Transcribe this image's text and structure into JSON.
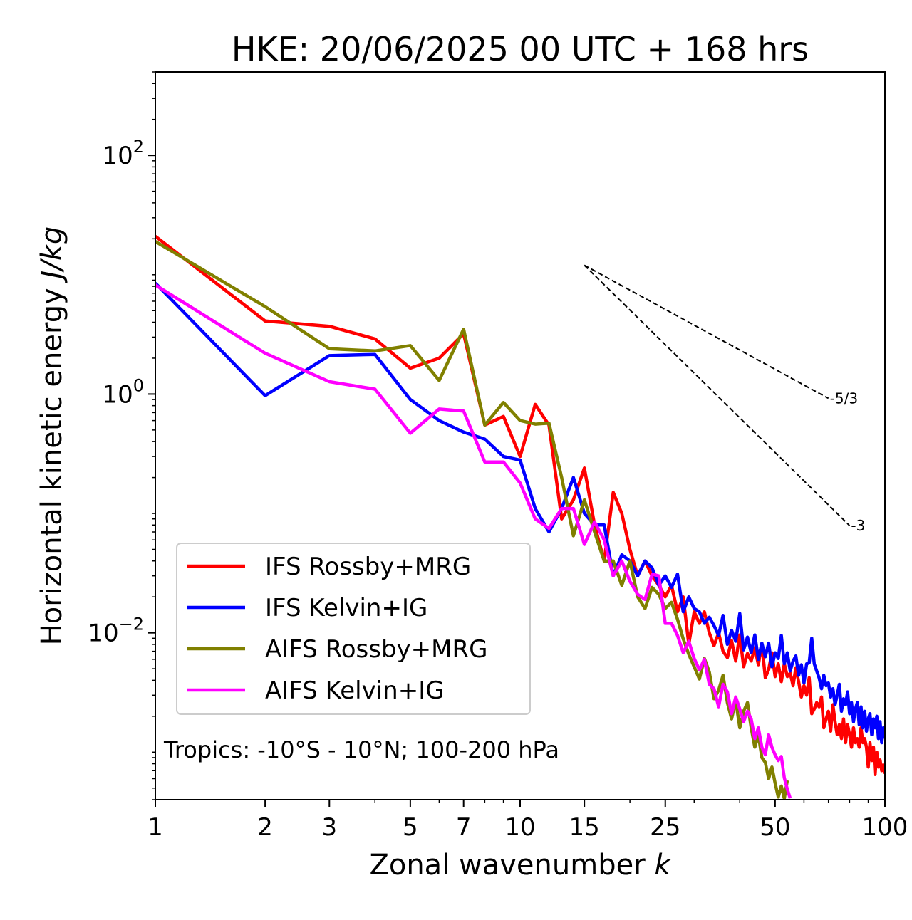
{
  "chart_data": {
    "type": "line",
    "title": "HKE: 20/06/2025 00 UTC + 168 hrs",
    "xlabel": "Zonal wavenumber k",
    "ylabel": "Horizontal kinetic energy J/kg",
    "xscale": "log",
    "yscale": "log",
    "xlim": [
      1,
      100
    ],
    "ylim": [
      0.0004,
      500
    ],
    "x_ticks": [
      {
        "value": 1,
        "label": "1"
      },
      {
        "value": 2,
        "label": "2"
      },
      {
        "value": 3,
        "label": "3"
      },
      {
        "value": 5,
        "label": "5"
      },
      {
        "value": 7,
        "label": "7"
      },
      {
        "value": 10,
        "label": "10"
      },
      {
        "value": 15,
        "label": "15"
      },
      {
        "value": 25,
        "label": "25"
      },
      {
        "value": 50,
        "label": "50"
      },
      {
        "value": 100,
        "label": "100"
      }
    ],
    "y_ticks": [
      {
        "value": 100,
        "base": "10",
        "exp": "2"
      },
      {
        "value": 1,
        "base": "10",
        "exp": "0"
      },
      {
        "value": 0.01,
        "base": "10",
        "exp": "−2"
      }
    ],
    "grid": false,
    "legend_position": "lower-left",
    "annotation": "Tropics: -10°S - 10°N; 100-200 hPa",
    "reference_slopes": [
      {
        "label": "-5/3",
        "slope": -1.6667,
        "x_start": 15,
        "y_start": 12,
        "x_end": 70
      },
      {
        "label": "-3",
        "slope": -3,
        "x_start": 15,
        "y_start": 12,
        "x_end": 80
      }
    ],
    "series": [
      {
        "name": "IFS Rossby+MRG",
        "color": "#ff0000",
        "x": [
          1,
          2,
          3,
          4,
          5,
          6,
          7,
          8,
          9,
          10,
          11,
          12,
          13,
          14,
          15,
          16,
          17,
          18,
          19,
          20,
          21,
          22,
          23,
          24,
          25,
          26,
          27,
          28,
          29,
          30,
          31,
          32,
          33,
          34,
          35,
          36,
          37,
          38,
          39,
          40,
          41,
          42,
          43,
          44,
          45,
          46,
          47,
          48,
          49,
          50,
          51,
          52,
          53,
          54,
          55,
          56,
          57,
          58,
          59,
          60,
          61,
          62,
          63,
          64,
          65,
          66,
          67,
          68,
          69,
          70,
          71,
          72,
          73,
          74,
          75,
          76,
          77,
          78,
          79,
          80,
          81,
          82,
          83,
          84,
          85,
          86,
          87,
          88,
          89,
          90,
          91,
          92,
          93,
          94,
          95,
          96,
          97,
          98,
          99,
          100
        ],
        "y": [
          21,
          4.1,
          3.7,
          2.9,
          1.65,
          2.0,
          3.2,
          0.55,
          0.65,
          0.3,
          0.82,
          0.55,
          0.09,
          0.13,
          0.24,
          0.08,
          0.04,
          0.15,
          0.1,
          0.05,
          0.03,
          0.04,
          0.03,
          0.025,
          0.02,
          0.025,
          0.015,
          0.02,
          0.008,
          0.015,
          0.012,
          0.015,
          0.01,
          0.0078,
          0.01,
          0.007,
          0.0062,
          0.0086,
          0.0058,
          0.0096,
          0.0052,
          0.0067,
          0.0058,
          0.0075,
          0.0054,
          0.0081,
          0.0042,
          0.0049,
          0.0068,
          0.0043,
          0.0055,
          0.0039,
          0.0055,
          0.0043,
          0.0046,
          0.0036,
          0.0051,
          0.0039,
          0.0029,
          0.0036,
          0.003,
          0.0042,
          0.0021,
          0.0023,
          0.0026,
          0.0024,
          0.0029,
          0.0016,
          0.0019,
          0.0022,
          0.0015,
          0.0025,
          0.0018,
          0.0014,
          0.0017,
          0.0013,
          0.0019,
          0.0012,
          0.0017,
          0.0014,
          0.0011,
          0.0016,
          0.0012,
          0.0013,
          0.0011,
          0.0016,
          0.0012,
          0.0013,
          0.0011,
          0.00075,
          0.0012,
          0.00085,
          0.0011,
          0.00065,
          0.001,
          0.00075,
          0.00086,
          0.0007,
          0.00078,
          0.00066
        ]
      },
      {
        "name": "IFS Kelvin+IG",
        "color": "#0000ff",
        "x": [
          1,
          2,
          3,
          4,
          5,
          6,
          7,
          8,
          9,
          10,
          11,
          12,
          13,
          14,
          15,
          16,
          17,
          18,
          19,
          20,
          21,
          22,
          23,
          24,
          25,
          26,
          27,
          28,
          29,
          30,
          31,
          32,
          33,
          34,
          35,
          36,
          37,
          38,
          39,
          40,
          41,
          42,
          43,
          44,
          45,
          46,
          47,
          48,
          49,
          50,
          51,
          52,
          53,
          54,
          55,
          56,
          57,
          58,
          59,
          60,
          61,
          62,
          63,
          64,
          65,
          66,
          67,
          68,
          69,
          70,
          71,
          72,
          73,
          74,
          75,
          76,
          77,
          78,
          79,
          80,
          81,
          82,
          83,
          84,
          85,
          86,
          87,
          88,
          89,
          90,
          91,
          92,
          93,
          94,
          95,
          96,
          97,
          98,
          99,
          100
        ],
        "y": [
          8.5,
          0.97,
          2.1,
          2.15,
          0.9,
          0.6,
          0.48,
          0.42,
          0.3,
          0.28,
          0.11,
          0.07,
          0.11,
          0.2,
          0.1,
          0.08,
          0.08,
          0.03,
          0.045,
          0.04,
          0.03,
          0.04,
          0.035,
          0.025,
          0.03,
          0.024,
          0.031,
          0.015,
          0.02,
          0.016,
          0.015,
          0.012,
          0.0135,
          0.0115,
          0.0095,
          0.014,
          0.008,
          0.0105,
          0.0085,
          0.0145,
          0.0072,
          0.0092,
          0.0068,
          0.0096,
          0.006,
          0.0082,
          0.0063,
          0.0082,
          0.0052,
          0.0068,
          0.0061,
          0.0095,
          0.0055,
          0.0068,
          0.0048,
          0.0058,
          0.0064,
          0.0044,
          0.0054,
          0.0038,
          0.0055,
          0.0056,
          0.009,
          0.0055,
          0.0048,
          0.0042,
          0.0034,
          0.0044,
          0.0036,
          0.0038,
          0.0029,
          0.0034,
          0.0025,
          0.003,
          0.0037,
          0.0022,
          0.0028,
          0.0025,
          0.0032,
          0.0021,
          0.0026,
          0.0018,
          0.0023,
          0.0026,
          0.0017,
          0.0024,
          0.0016,
          0.0022,
          0.0015,
          0.0019,
          0.0021,
          0.0014,
          0.0019,
          0.0016,
          0.002,
          0.0013,
          0.0018,
          0.0012,
          0.0016,
          0.0013
        ]
      },
      {
        "name": "AIFS Rossby+MRG",
        "color": "#808000",
        "x": [
          1,
          2,
          3,
          4,
          5,
          6,
          7,
          8,
          9,
          10,
          11,
          12,
          13,
          14,
          15,
          16,
          17,
          18,
          19,
          20,
          21,
          22,
          23,
          24,
          25,
          26,
          27,
          28,
          29,
          30,
          31,
          32,
          33,
          34,
          35,
          36,
          37,
          38,
          39,
          40,
          41,
          42,
          43,
          44,
          45,
          46,
          47,
          48,
          49,
          50,
          51,
          52,
          53,
          54
        ],
        "y": [
          19,
          5.4,
          2.4,
          2.3,
          2.55,
          1.3,
          3.5,
          0.55,
          0.85,
          0.6,
          0.56,
          0.57,
          0.2,
          0.065,
          0.13,
          0.07,
          0.04,
          0.04,
          0.025,
          0.04,
          0.02,
          0.016,
          0.024,
          0.021,
          0.016,
          0.018,
          0.013,
          0.0089,
          0.0066,
          0.0052,
          0.0041,
          0.0061,
          0.0047,
          0.0028,
          0.0033,
          0.0044,
          0.0026,
          0.0019,
          0.0027,
          0.0016,
          0.0022,
          0.0026,
          0.0016,
          0.0011,
          0.0014,
          0.0009,
          0.00082,
          0.0006,
          0.00075,
          0.00055,
          0.00042,
          0.00052,
          0.00041,
          0.00058
        ]
      },
      {
        "name": "AIFS Kelvin+IG",
        "color": "#ff00ff",
        "x": [
          1,
          2,
          3,
          4,
          5,
          6,
          7,
          8,
          9,
          10,
          11,
          12,
          13,
          14,
          15,
          16,
          17,
          18,
          19,
          20,
          21,
          22,
          23,
          24,
          25,
          26,
          27,
          28,
          29,
          30,
          31,
          32,
          33,
          34,
          35,
          36,
          37,
          38,
          39,
          40,
          41,
          42,
          43,
          44,
          45,
          46,
          47,
          48,
          49,
          50,
          51,
          52,
          53,
          54,
          55
        ],
        "y": [
          8.2,
          2.2,
          1.27,
          1.1,
          0.47,
          0.75,
          0.72,
          0.27,
          0.27,
          0.18,
          0.09,
          0.075,
          0.11,
          0.11,
          0.055,
          0.085,
          0.06,
          0.03,
          0.04,
          0.027,
          0.021,
          0.019,
          0.031,
          0.03,
          0.012,
          0.012,
          0.0095,
          0.0068,
          0.0085,
          0.0061,
          0.0049,
          0.006,
          0.0037,
          0.0034,
          0.0024,
          0.0037,
          0.0032,
          0.0021,
          0.0029,
          0.0023,
          0.0018,
          0.0022,
          0.0019,
          0.0013,
          0.0016,
          0.0011,
          0.00095,
          0.0014,
          0.0011,
          0.00095,
          0.00085,
          0.00092,
          0.00061,
          0.00049,
          0.00041
        ]
      }
    ]
  }
}
